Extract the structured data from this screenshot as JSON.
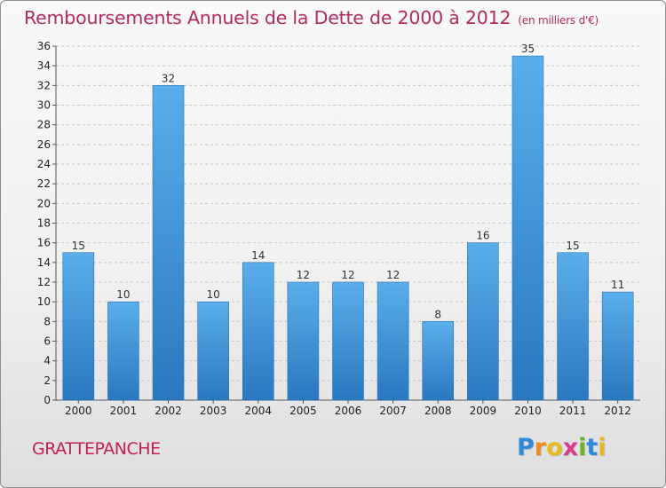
{
  "title": "Remboursements Annuels de la Dette de 2000 à 2012",
  "title_unit": "(en milliers d'€)",
  "commune": "GRATTEPANCHE",
  "logo": {
    "letters": [
      "P",
      "r",
      "o",
      "x",
      "i",
      "t",
      "i"
    ],
    "colors": [
      "#2e8ad8",
      "#f08a1c",
      "#e8b81e",
      "#d93a8c",
      "#6cb02c",
      "#2e8ad8",
      "#e8b81e"
    ]
  },
  "chart_data": {
    "type": "bar",
    "categories": [
      "2000",
      "2001",
      "2002",
      "2003",
      "2004",
      "2005",
      "2006",
      "2007",
      "2008",
      "2009",
      "2010",
      "2011",
      "2012"
    ],
    "values": [
      15,
      10,
      32,
      10,
      14,
      12,
      12,
      12,
      8,
      16,
      35,
      15,
      11
    ],
    "ylim": [
      0,
      36
    ],
    "yticks": [
      0,
      2,
      4,
      6,
      8,
      10,
      12,
      14,
      16,
      18,
      20,
      22,
      24,
      26,
      28,
      30,
      32,
      34,
      36
    ],
    "grid": true,
    "bar_color": "#3b8fd6"
  }
}
